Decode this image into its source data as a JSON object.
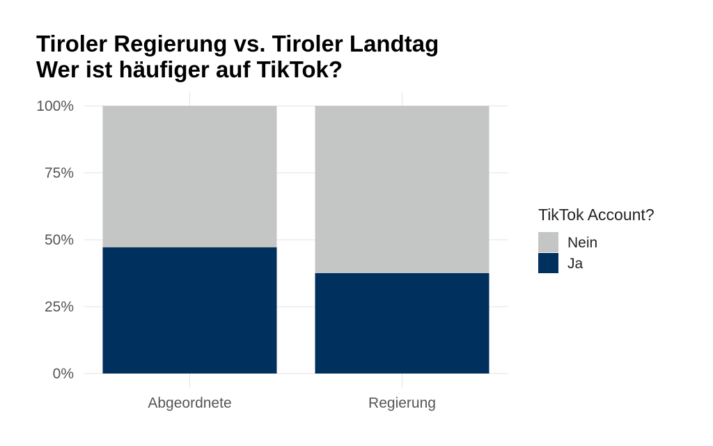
{
  "chart_data": {
    "type": "bar",
    "stacked": true,
    "title_lines": [
      "Tiroler Regierung vs. Tiroler Landtag",
      "Wer ist häufiger auf TikTok?"
    ],
    "categories": [
      "Abgeordnete",
      "Regierung"
    ],
    "y_tick_labels": [
      "0%",
      "25%",
      "50%",
      "75%",
      "100%"
    ],
    "ylim": [
      0,
      1
    ],
    "legend_title": "TikTok Account?",
    "legend_position": "right",
    "grid": true,
    "series": [
      {
        "name": "Ja",
        "color": "#00305d",
        "values": [
          0.472,
          0.375
        ]
      },
      {
        "name": "Nein",
        "color": "#c4c6c5",
        "values": [
          0.528,
          0.625
        ]
      }
    ],
    "legend_order": [
      "Nein",
      "Ja"
    ]
  }
}
